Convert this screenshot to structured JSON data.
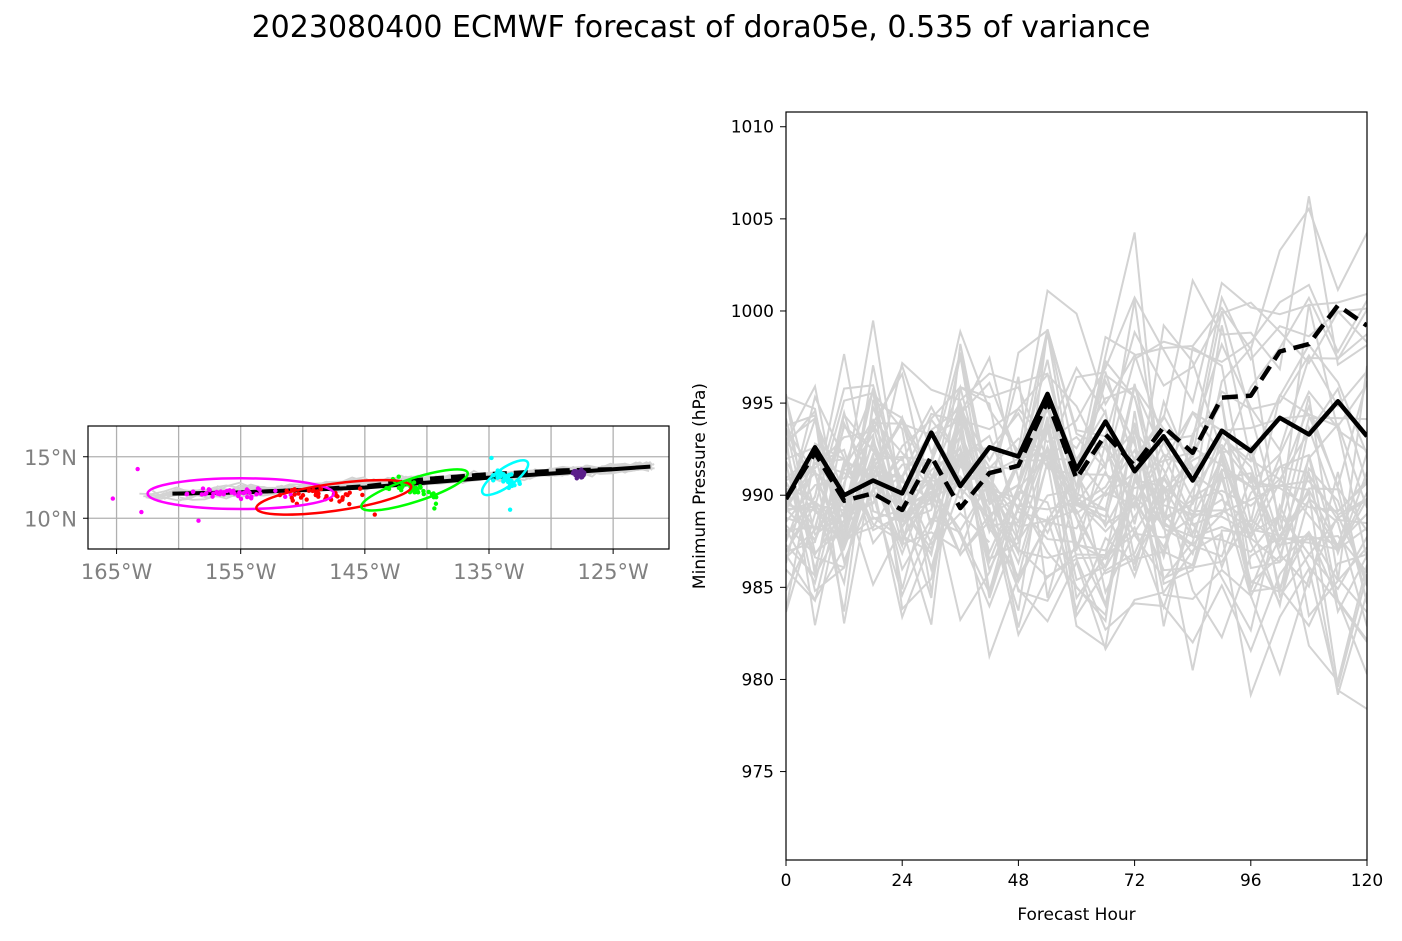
{
  "title": "2023080400 ECMWF forecast of dora05e, 0.535 of variance",
  "chart_data": [
    {
      "type": "map",
      "lon_ticks": [
        "165°W",
        "155°W",
        "145°W",
        "135°W",
        "125°W"
      ],
      "lat_ticks": [
        "15°N",
        "10°N"
      ],
      "xlim": [
        -167.3,
        -120.5
      ],
      "ylim": [
        7.5,
        17.5
      ],
      "ensemble_color": "#d3d3d3",
      "cluster_colors": [
        "#ff00ff",
        "#ff0000",
        "#00ff00",
        "#00ffff",
        "#5b1f8a"
      ],
      "mean_track": [
        [
          -160.5,
          12.0
        ],
        [
          -155,
          12.1
        ],
        [
          -150,
          12.3
        ],
        [
          -145,
          12.5
        ],
        [
          -140,
          12.9
        ],
        [
          -135,
          13.3
        ],
        [
          -129,
          13.7
        ],
        [
          -122,
          14.2
        ]
      ],
      "dashed_track": [
        [
          -160,
          12.0
        ],
        [
          -155,
          12.1
        ],
        [
          -150,
          12.3
        ],
        [
          -145,
          12.6
        ],
        [
          -140,
          13.2
        ],
        [
          -135,
          13.6
        ],
        [
          -129,
          13.9
        ],
        [
          -125,
          14.0
        ]
      ],
      "ellipses": [
        {
          "color": "#ff00ff",
          "lon": -155.0,
          "lat": 12.0,
          "rlon": 7.5,
          "rlat": 1.25,
          "angle": 0
        },
        {
          "color": "#ff0000",
          "lon": -147.5,
          "lat": 11.7,
          "rlon": 6.3,
          "rlat": 1.1,
          "angle": -8
        },
        {
          "color": "#00ff00",
          "lon": -141.0,
          "lat": 12.3,
          "rlon": 4.5,
          "rlat": 0.95,
          "angle": -18
        },
        {
          "color": "#00ffff",
          "lon": -133.7,
          "lat": 13.3,
          "rlon": 2.2,
          "rlat": 0.75,
          "angle": -35
        }
      ]
    },
    {
      "type": "line",
      "xlabel": "Forecast Hour",
      "ylabel": "Minimum Pressure (hPa)",
      "xlim": [
        0,
        120
      ],
      "ylim": [
        970.2,
        1010.8
      ],
      "xticks": [
        0,
        24,
        48,
        72,
        96,
        120
      ],
      "yticks": [
        975,
        980,
        985,
        990,
        995,
        1000,
        1005,
        1010
      ],
      "x": [
        0,
        6,
        12,
        18,
        24,
        30,
        36,
        42,
        48,
        54,
        60,
        66,
        72,
        78,
        84,
        90,
        96,
        102,
        108,
        114,
        120
      ],
      "ensemble_color": "#d3d3d3",
      "series": [
        {
          "style": "solid",
          "color": "#000000",
          "values": [
            989.8,
            992.6,
            990.0,
            990.8,
            990.1,
            993.4,
            990.5,
            992.6,
            992.1,
            995.5,
            991.4,
            994.0,
            991.3,
            993.2,
            990.8,
            993.5,
            992.4,
            994.2,
            993.3,
            995.1,
            993.2
          ]
        },
        {
          "style": "dashed",
          "color": "#000000",
          "values": [
            989.8,
            992.3,
            989.7,
            990.1,
            989.2,
            992.1,
            989.3,
            991.2,
            991.6,
            995.1,
            990.9,
            993.3,
            991.6,
            993.7,
            992.3,
            995.3,
            995.4,
            997.8,
            998.2,
            1000.3,
            999.2
          ]
        }
      ]
    }
  ]
}
